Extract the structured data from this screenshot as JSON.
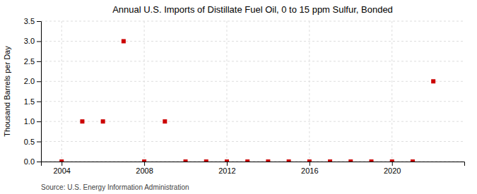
{
  "chart_data": {
    "type": "scatter",
    "title": "Annual U.S. Imports of Distillate Fuel Oil, 0 to 15 ppm Sulfur, Bonded",
    "ylabel": "Thousand Barrels per Day",
    "annotations": [
      "Source: U.S. Energy Information Administration"
    ],
    "x": [
      2004,
      2005,
      2006,
      2007,
      2008,
      2009,
      2010,
      2011,
      2012,
      2013,
      2014,
      2015,
      2016,
      2017,
      2018,
      2019,
      2020,
      2021,
      2022
    ],
    "values": [
      0.0,
      1.0,
      1.0,
      3.0,
      0.0,
      1.0,
      0.0,
      0.0,
      0.0,
      0.0,
      0.0,
      0.0,
      0.0,
      0.0,
      0.0,
      0.0,
      0.0,
      0.0,
      2.0
    ],
    "color": "#cc0000",
    "marker": "square",
    "xlim": [
      2003.0,
      2023.5
    ],
    "xticks": [
      2004,
      2008,
      2012,
      2016,
      2020
    ],
    "ylim": [
      0.0,
      3.5
    ],
    "yticks": [
      {
        "value": 0.0,
        "label": "0.0"
      },
      0.5,
      {
        "value": 1.0,
        "label": "1.0"
      },
      1.5,
      {
        "value": 2.0,
        "label": "2.0"
      },
      2.5,
      {
        "value": 3.0,
        "label": "3.0"
      },
      3.5
    ],
    "grid": true
  }
}
